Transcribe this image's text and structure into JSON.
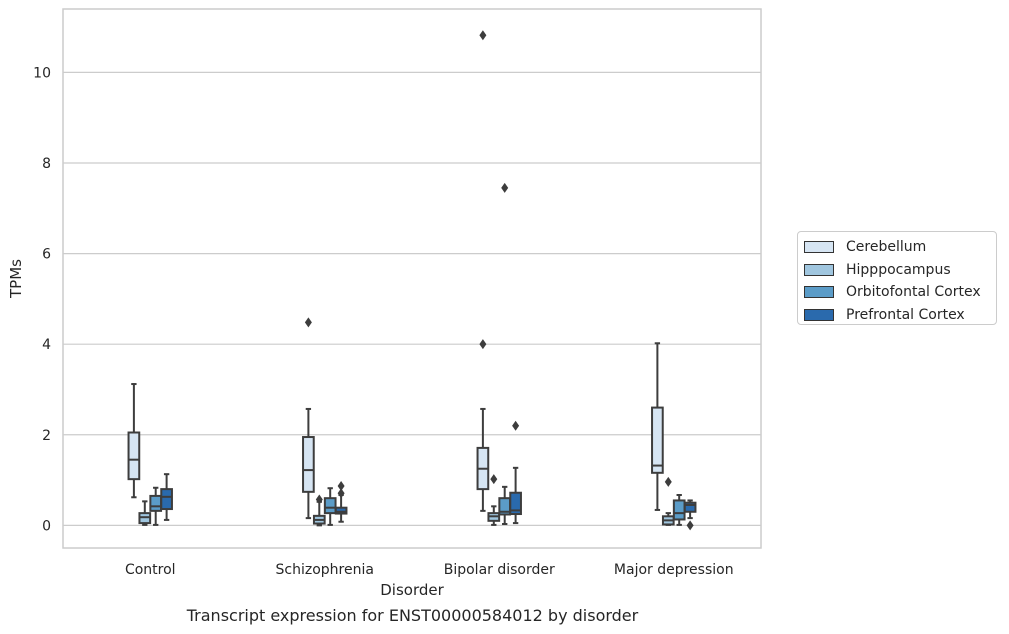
{
  "caption": "Transcript expression for ENST00000584012 by disorder",
  "chart_data": {
    "type": "box",
    "title": "",
    "xlabel": "Disorder",
    "ylabel": "TPMs",
    "ylim": [
      -0.5,
      11.4
    ],
    "yticks": [
      0,
      2,
      4,
      6,
      8,
      10
    ],
    "grid": true,
    "legend_position": "right",
    "categories": [
      "Control",
      "Schizophrenia",
      "Bipolar disorder",
      "Major depression"
    ],
    "series": [
      {
        "name": "Cerebellum",
        "color": "#d6e5f3",
        "boxes": [
          {
            "whislo": 0.62,
            "q1": 1.02,
            "med": 1.45,
            "q3": 2.05,
            "whishi": 3.12,
            "fliers": []
          },
          {
            "whislo": 0.16,
            "q1": 0.74,
            "med": 1.22,
            "q3": 1.95,
            "whishi": 2.57,
            "fliers": [
              4.48
            ]
          },
          {
            "whislo": 0.32,
            "q1": 0.8,
            "med": 1.25,
            "q3": 1.71,
            "whishi": 2.57,
            "fliers": [
              4.0,
              10.82
            ]
          },
          {
            "whislo": 0.34,
            "q1": 1.16,
            "med": 1.32,
            "q3": 2.6,
            "whishi": 4.02,
            "fliers": []
          }
        ]
      },
      {
        "name": "Hipppocampus",
        "color": "#a0c6df",
        "boxes": [
          {
            "whislo": 0.01,
            "q1": 0.05,
            "med": 0.18,
            "q3": 0.27,
            "whishi": 0.53,
            "fliers": []
          },
          {
            "whislo": 0.0,
            "q1": 0.04,
            "med": 0.12,
            "q3": 0.21,
            "whishi": 0.52,
            "fliers": [
              0.57
            ]
          },
          {
            "whislo": 0.01,
            "q1": 0.1,
            "med": 0.2,
            "q3": 0.27,
            "whishi": 0.42,
            "fliers": [
              1.02
            ]
          },
          {
            "whislo": 0.01,
            "q1": 0.02,
            "med": 0.11,
            "q3": 0.2,
            "whishi": 0.27,
            "fliers": [
              0.96
            ]
          }
        ]
      },
      {
        "name": "Orbitofontal Cortex",
        "color": "#5b9cc8",
        "boxes": [
          {
            "whislo": 0.01,
            "q1": 0.32,
            "med": 0.42,
            "q3": 0.65,
            "whishi": 0.83,
            "fliers": []
          },
          {
            "whislo": 0.01,
            "q1": 0.27,
            "med": 0.39,
            "q3": 0.6,
            "whishi": 0.82,
            "fliers": []
          },
          {
            "whislo": 0.03,
            "q1": 0.24,
            "med": 0.3,
            "q3": 0.6,
            "whishi": 0.85,
            "fliers": [
              7.45
            ]
          },
          {
            "whislo": 0.01,
            "q1": 0.13,
            "med": 0.27,
            "q3": 0.55,
            "whishi": 0.67,
            "fliers": []
          }
        ]
      },
      {
        "name": "Prefrontal Cortex",
        "color": "#2a6aad",
        "boxes": [
          {
            "whislo": 0.12,
            "q1": 0.36,
            "med": 0.63,
            "q3": 0.8,
            "whishi": 1.13,
            "fliers": []
          },
          {
            "whislo": 0.08,
            "q1": 0.26,
            "med": 0.3,
            "q3": 0.39,
            "whishi": 0.67,
            "fliers": [
              0.71,
              0.87
            ]
          },
          {
            "whislo": 0.05,
            "q1": 0.25,
            "med": 0.33,
            "q3": 0.72,
            "whishi": 1.27,
            "fliers": [
              2.2
            ]
          },
          {
            "whislo": 0.16,
            "q1": 0.3,
            "med": 0.45,
            "q3": 0.5,
            "whishi": 0.55,
            "fliers": [
              0.0
            ]
          }
        ]
      }
    ]
  }
}
